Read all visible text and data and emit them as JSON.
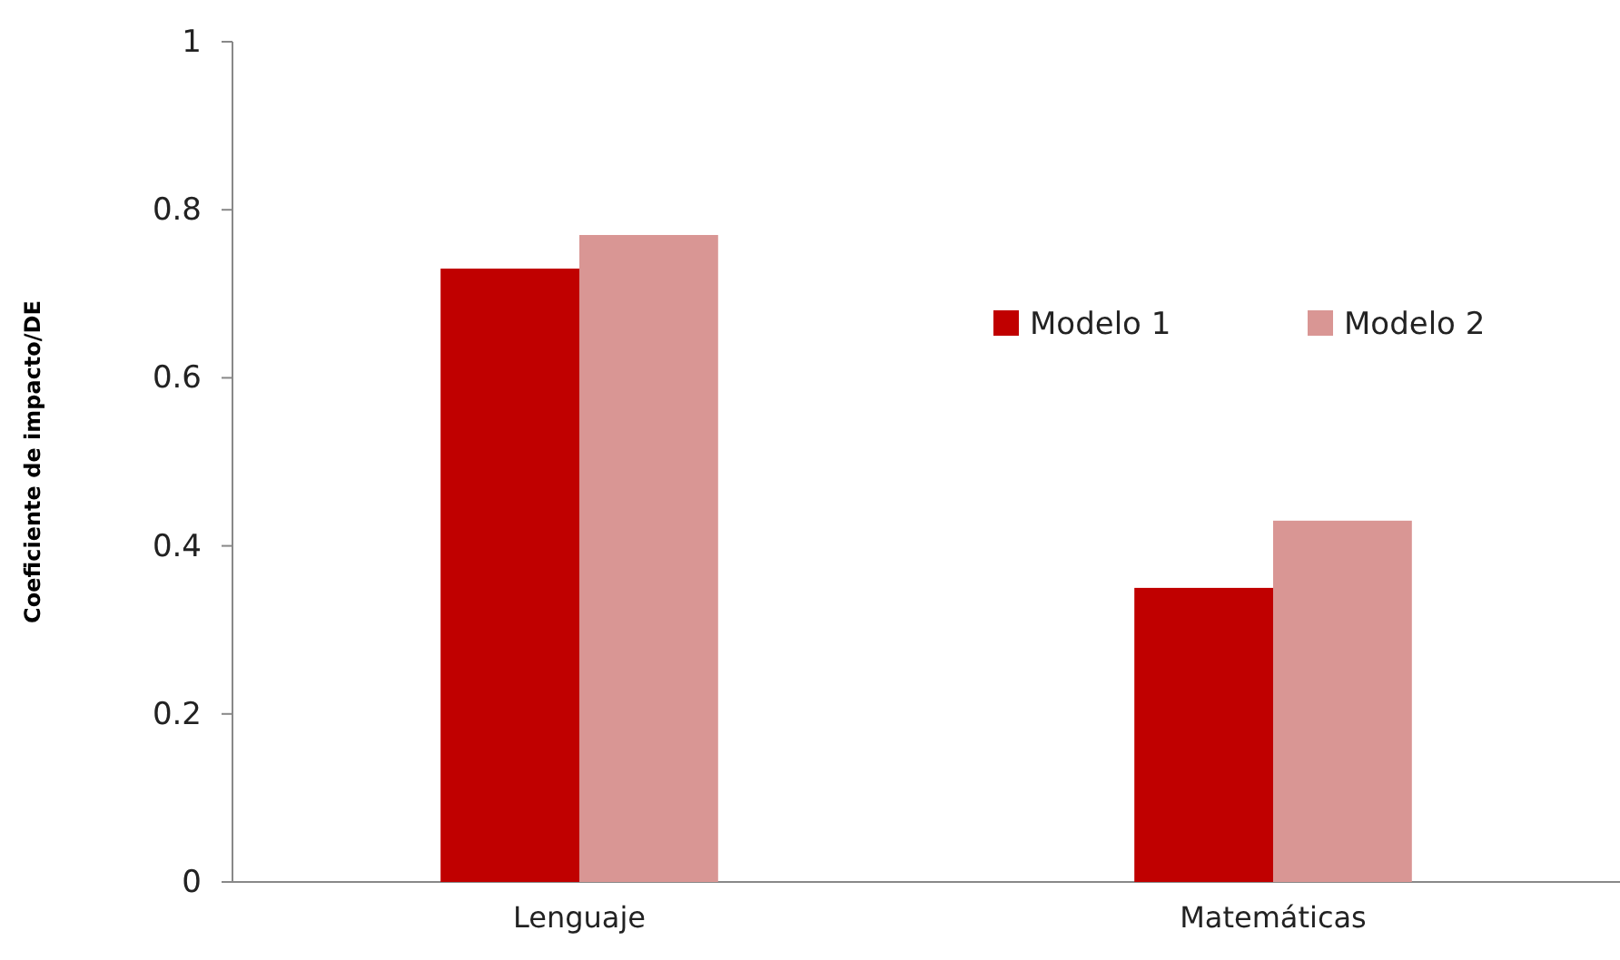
{
  "chart_data": {
    "type": "bar",
    "ylabel": "Coeficiente de impacto/DE",
    "categories": [
      "Lenguaje",
      "Matemáticas"
    ],
    "series": [
      {
        "name": "Modelo 1",
        "color": "#c00000",
        "values": [
          0.73,
          0.35
        ]
      },
      {
        "name": "Modelo 2",
        "color": "#d99694",
        "values": [
          0.77,
          0.43
        ]
      }
    ],
    "ylim": [
      0,
      1
    ],
    "yticks": [
      0,
      0.2,
      0.4,
      0.6,
      0.8,
      1
    ],
    "grid": false,
    "legend": "top right"
  }
}
